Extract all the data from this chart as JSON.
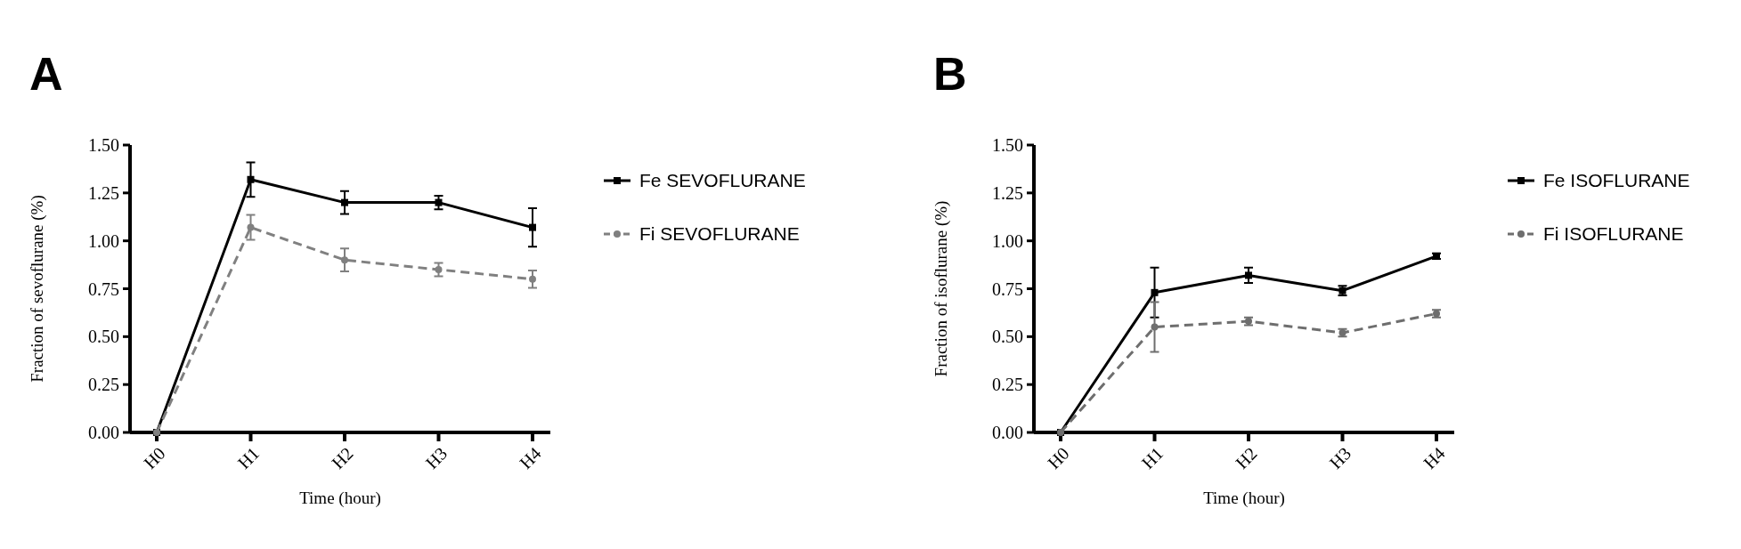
{
  "chart_data": [
    {
      "type": "line",
      "title": "A",
      "xlabel": "Time (hour)",
      "ylabel": "Fraction of sevoflurane (%)",
      "categories": [
        "H0",
        "H1",
        "H2",
        "H3",
        "H4"
      ],
      "ylim": [
        0,
        1.5
      ],
      "yticks": [
        {
          "value": 0,
          "label": "0.00"
        },
        {
          "value": 0.25,
          "label": "0.25"
        },
        {
          "value": 0.5,
          "label": "0.50"
        },
        {
          "value": 0.75,
          "label": "0.75"
        },
        {
          "value": 1,
          "label": "1.00"
        },
        {
          "value": 1.25,
          "label": "1.25"
        },
        {
          "value": 1.5,
          "label": "1.50"
        }
      ],
      "legend": "right",
      "grid": false,
      "series": [
        {
          "name": "Fe SEVOFLURANE",
          "color": "#000000",
          "values": [
            0,
            1.32,
            1.2,
            1.2,
            1.07
          ],
          "errors": [
            null,
            0.09,
            0.06,
            0.035,
            0.1
          ],
          "marker": "square",
          "line_style": "solid"
        },
        {
          "name": "Fi SEVOFLURANE",
          "color": "#808080",
          "values": [
            0,
            1.07,
            0.9,
            0.85,
            0.8
          ],
          "errors": [
            null,
            0.065,
            0.06,
            0.035,
            0.045
          ],
          "marker": "circle",
          "line_style": "dashed"
        }
      ]
    },
    {
      "type": "line",
      "title": "B",
      "xlabel": "Time (hour)",
      "ylabel": "Fraction of isoflurane (%)",
      "categories": [
        "H0",
        "H1",
        "H2",
        "H3",
        "H4"
      ],
      "ylim": [
        0,
        1.5
      ],
      "yticks": [
        {
          "value": 0,
          "label": "0.00"
        },
        {
          "value": 0.25,
          "label": "0.25"
        },
        {
          "value": 0.5,
          "label": "0.50"
        },
        {
          "value": 0.75,
          "label": "0.75"
        },
        {
          "value": 1,
          "label": "1.00"
        },
        {
          "value": 1.25,
          "label": "1.25"
        },
        {
          "value": 1.5,
          "label": "1.50"
        }
      ],
      "legend": "right",
      "grid": false,
      "series": [
        {
          "name": "Fe ISOFLURANE",
          "color": "#000000",
          "values": [
            0,
            0.73,
            0.82,
            0.74,
            0.92
          ],
          "errors": [
            null,
            0.13,
            0.04,
            0.025,
            0.015
          ],
          "marker": "square",
          "line_style": "solid"
        },
        {
          "name": "Fi ISOFLURANE",
          "color": "#6e6e6e",
          "values": [
            0,
            0.55,
            0.58,
            0.52,
            0.62
          ],
          "errors": [
            null,
            0.13,
            0.02,
            0.02,
            0.02
          ],
          "marker": "circle",
          "line_style": "dashed"
        }
      ]
    }
  ]
}
